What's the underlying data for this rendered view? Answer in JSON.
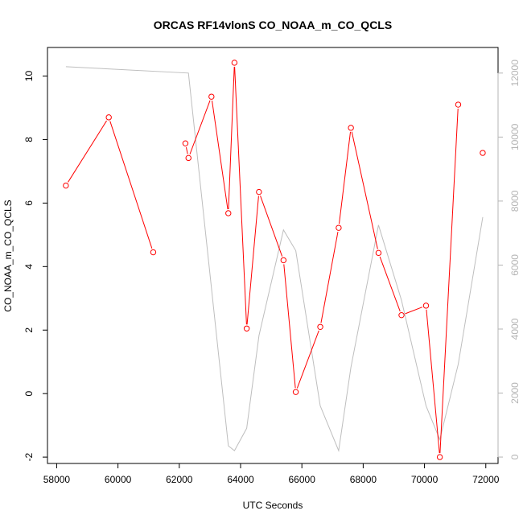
{
  "chart_data": {
    "type": "line",
    "title": "ORCAS RF14vlonS CO_NOAA_m_CO_QCLS",
    "xlabel": "UTC Seconds",
    "ylabel": "CO_NOAA_m_CO_QCLS",
    "xlim": [
      57700,
      72400
    ],
    "ylim": [
      -2.2,
      10.9
    ],
    "y2lim": [
      -200,
      12800
    ],
    "x_ticks": [
      58000,
      60000,
      62000,
      64000,
      66000,
      68000,
      70000,
      72000
    ],
    "y_ticks": [
      -2,
      0,
      2,
      4,
      6,
      8,
      10
    ],
    "y2_ticks": [
      0,
      2000,
      4000,
      6000,
      8000,
      10000,
      12000
    ],
    "grid": false,
    "series": [
      {
        "color": "#ff0000",
        "axis": "left",
        "marker": "open-circle",
        "x": [
          58300,
          59700,
          61150,
          62200,
          62300,
          63050,
          63600,
          63800,
          64200,
          64600,
          65400,
          65800,
          66600,
          67200,
          67600,
          68500,
          69250,
          70050,
          70500,
          71100,
          71900
        ],
        "y": [
          6.55,
          8.7,
          4.45,
          7.88,
          7.42,
          9.35,
          5.68,
          10.42,
          2.05,
          6.35,
          4.2,
          0.05,
          2.1,
          5.22,
          8.37,
          4.43,
          2.47,
          2.77,
          -2.0,
          9.1,
          7.58
        ],
        "breaks_after": [
          2,
          19
        ]
      },
      {
        "color": "#bebebe",
        "axis": "right",
        "marker": "none",
        "x": [
          58300,
          62300,
          63600,
          63800,
          64200,
          64600,
          65400,
          65800,
          66600,
          67200,
          67600,
          68500,
          69250,
          70050,
          70500,
          71100,
          71900
        ],
        "y": [
          12200,
          12000,
          350,
          200,
          900,
          3800,
          7100,
          6450,
          1600,
          200,
          2800,
          7250,
          4900,
          1600,
          550,
          2900,
          7500
        ]
      }
    ]
  }
}
